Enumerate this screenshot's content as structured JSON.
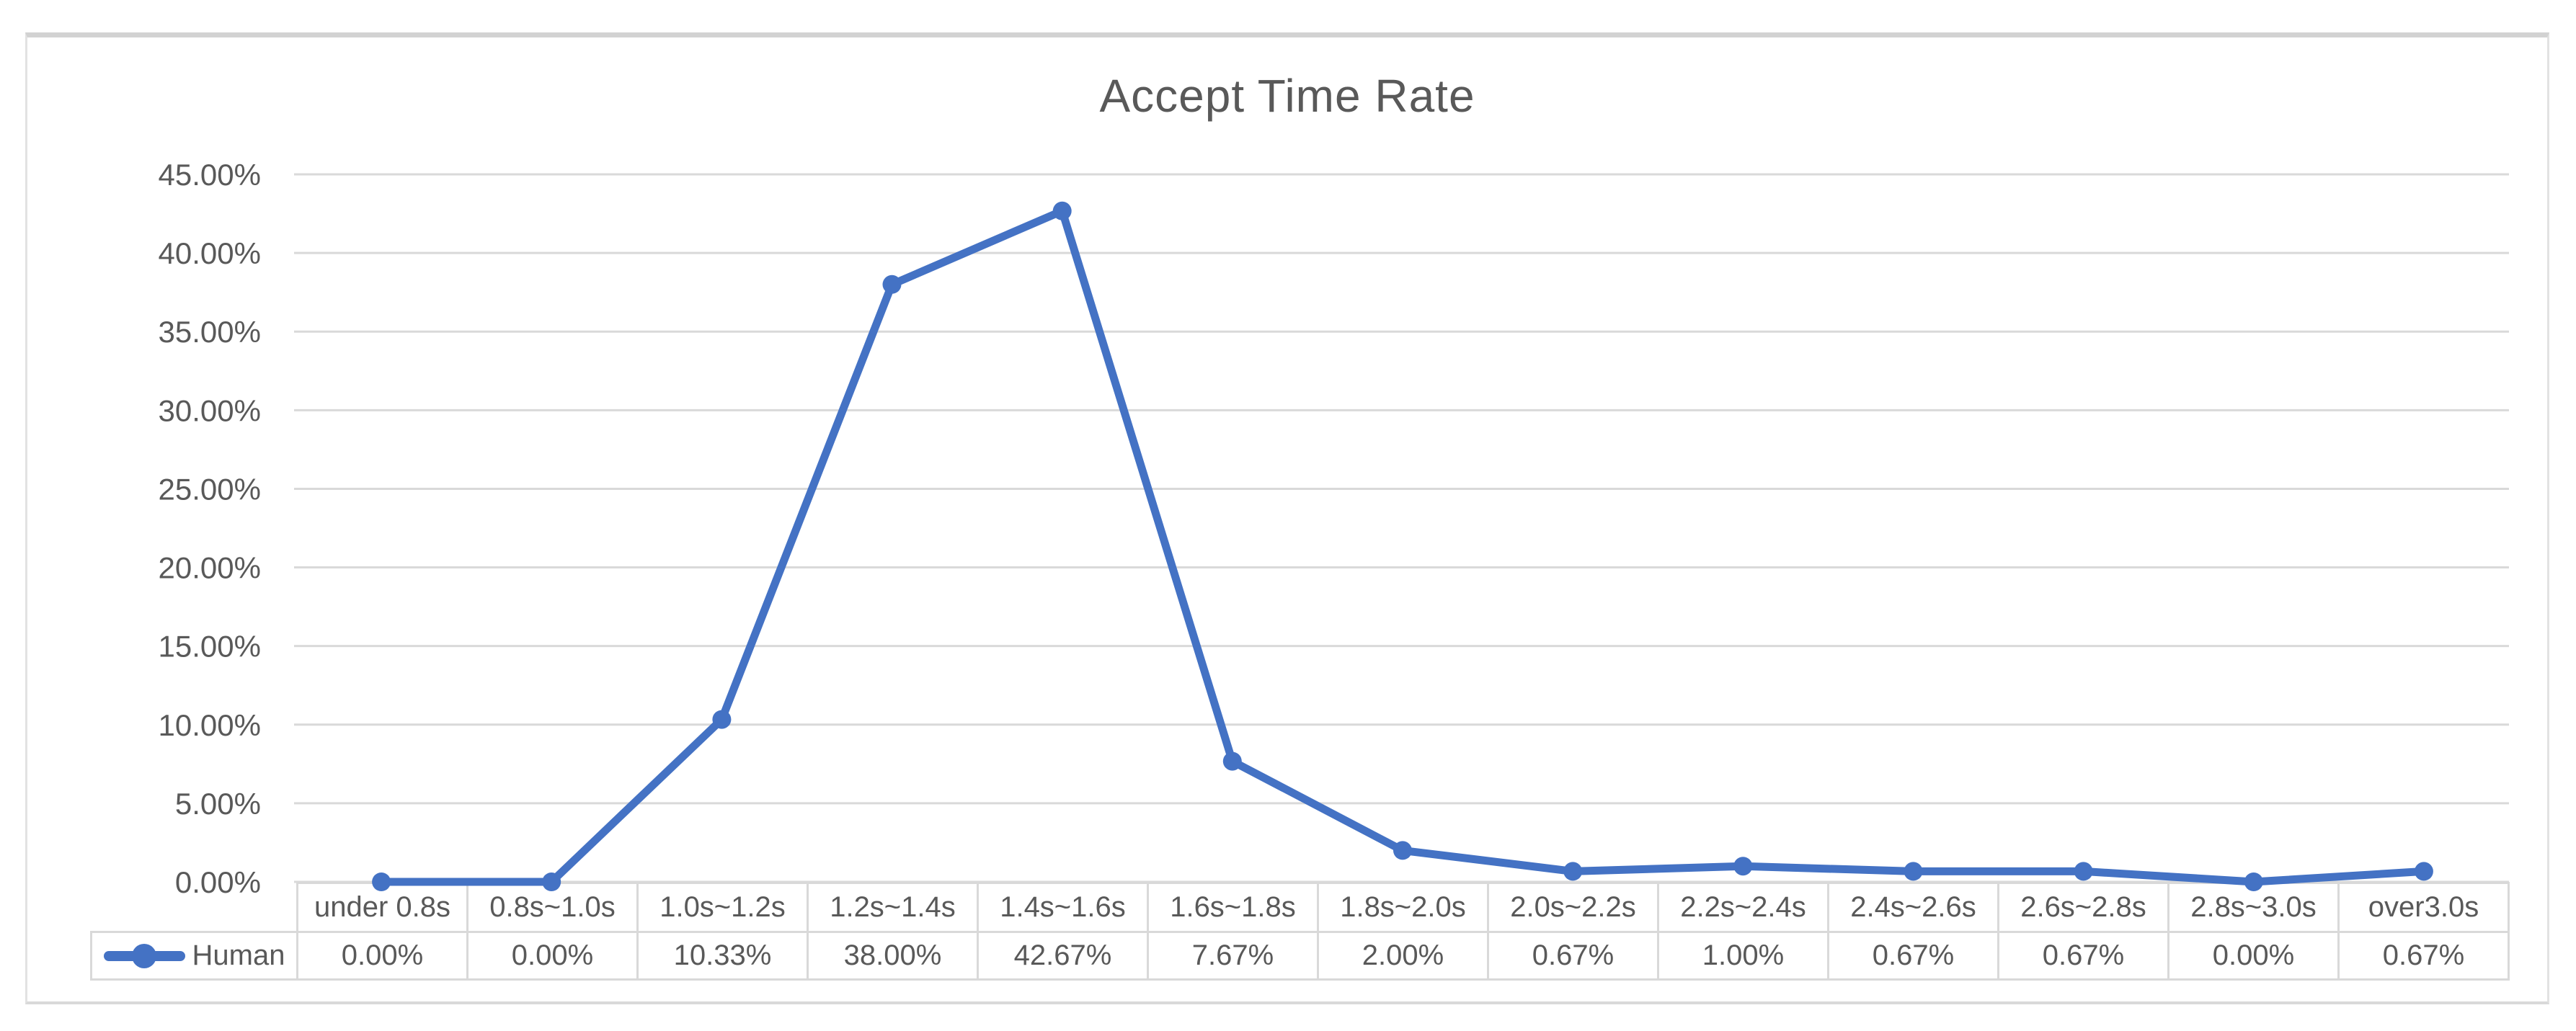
{
  "chart_data": {
    "type": "line",
    "title": "Accept Time Rate",
    "categories": [
      "under 0.8s",
      "0.8s~1.0s",
      "1.0s~1.2s",
      "1.2s~1.4s",
      "1.4s~1.6s",
      "1.6s~1.8s",
      "1.8s~2.0s",
      "2.0s~2.2s",
      "2.2s~2.4s",
      "2.4s~2.6s",
      "2.6s~2.8s",
      "2.8s~3.0s",
      "over3.0s"
    ],
    "series": [
      {
        "name": "Human",
        "values": [
          0.0,
          0.0,
          10.33,
          38.0,
          42.67,
          7.67,
          2.0,
          0.67,
          1.0,
          0.67,
          0.67,
          0.0,
          0.67
        ],
        "value_labels": [
          "0.00%",
          "0.00%",
          "10.33%",
          "38.00%",
          "42.67%",
          "7.67%",
          "2.00%",
          "0.67%",
          "1.00%",
          "0.67%",
          "0.67%",
          "0.00%",
          "0.67%"
        ]
      }
    ],
    "y_ticks": [
      "0.00%",
      "5.00%",
      "10.00%",
      "15.00%",
      "20.00%",
      "25.00%",
      "30.00%",
      "35.00%",
      "40.00%",
      "45.00%"
    ],
    "ylim_percent": [
      0,
      45
    ],
    "grid": true,
    "legend_position": "data-table-left",
    "colors": {
      "line": "#4472C4",
      "grid": "#D9D9D9",
      "text": "#595959",
      "table_border": "#D9D9D9",
      "frame_border": "#D9D9D9"
    }
  }
}
